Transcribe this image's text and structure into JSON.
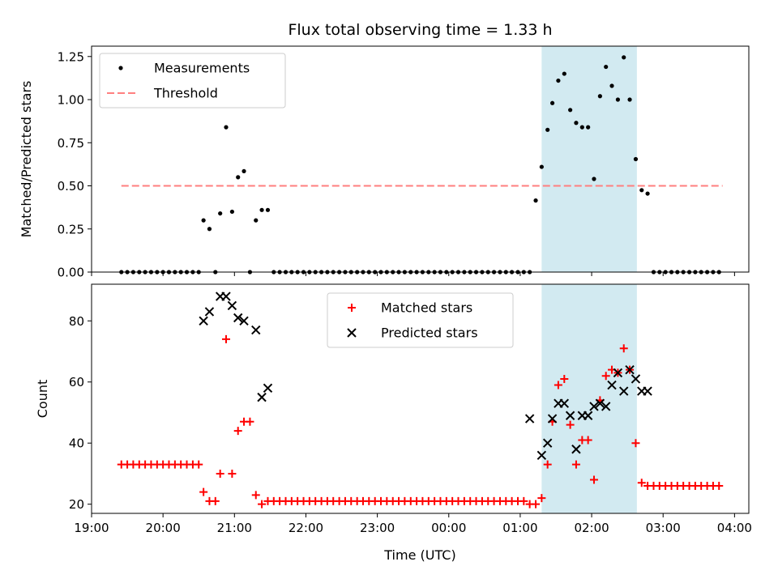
{
  "chart_data": [
    {
      "type": "scatter",
      "title": "Flux total observing time = 1.33 h",
      "ylabel": "Matched/Predicted stars",
      "xlabel": "",
      "xlim": [
        19.0,
        28.2
      ],
      "ylim": [
        0,
        1.31
      ],
      "yticks": [
        0,
        0.25,
        0.5,
        0.75,
        1.0,
        1.25
      ],
      "ytick_labels": [
        "0.00",
        "0.25",
        "0.50",
        "0.75",
        "1.00",
        "1.25"
      ],
      "grid": false,
      "legend": "top-left",
      "highlight_span": {
        "x": [
          25.3,
          26.633
        ],
        "color": "#add8e6"
      },
      "series": [
        {
          "name": "Measurements",
          "marker": "dot",
          "color": "#000000",
          "x": [
            19.417,
            19.5,
            19.583,
            19.667,
            19.75,
            19.833,
            19.917,
            20.0,
            20.083,
            20.167,
            20.25,
            20.333,
            20.417,
            20.5,
            20.567,
            20.65,
            20.733,
            20.8,
            20.883,
            20.967,
            21.05,
            21.133,
            21.217,
            21.3,
            21.383,
            21.467,
            21.55,
            21.633,
            21.717,
            21.8,
            21.883,
            21.967,
            22.05,
            22.133,
            22.217,
            22.3,
            22.383,
            22.467,
            22.55,
            22.633,
            22.717,
            22.8,
            22.883,
            22.967,
            23.05,
            23.133,
            23.217,
            23.3,
            23.383,
            23.467,
            23.55,
            23.633,
            23.717,
            23.8,
            23.883,
            23.967,
            24.05,
            24.133,
            24.217,
            24.3,
            24.383,
            24.467,
            24.55,
            24.633,
            24.717,
            24.8,
            24.883,
            24.967,
            25.05,
            25.133,
            25.217,
            25.3,
            25.383,
            25.45,
            25.533,
            25.617,
            25.7,
            25.783,
            25.867,
            25.95,
            26.033,
            26.117,
            26.2,
            26.283,
            26.367,
            26.45,
            26.533,
            26.617,
            26.7,
            26.783,
            26.867,
            26.95,
            27.033,
            27.117,
            27.2,
            27.283,
            27.367,
            27.45,
            27.533,
            27.617,
            27.7,
            27.783
          ],
          "y": [
            0,
            0,
            0,
            0,
            0,
            0,
            0,
            0,
            0,
            0,
            0,
            0,
            0,
            0,
            0.3,
            0.25,
            0,
            0.34,
            0.84,
            0.35,
            0.55,
            0.585,
            0,
            0.3,
            0.36,
            0.36,
            0,
            0,
            0,
            0,
            0,
            0,
            0,
            0,
            0,
            0,
            0,
            0,
            0,
            0,
            0,
            0,
            0,
            0,
            0,
            0,
            0,
            0,
            0,
            0,
            0,
            0,
            0,
            0,
            0,
            0,
            0,
            0,
            0,
            0,
            0,
            0,
            0,
            0,
            0,
            0,
            0,
            0,
            0,
            0,
            0.415,
            0.61,
            0.825,
            0.98,
            1.11,
            1.15,
            0.94,
            0.865,
            0.84,
            0.84,
            0.54,
            1.02,
            1.19,
            1.08,
            1.0,
            1.245,
            1.0,
            0.655,
            0.475,
            0.455,
            0,
            0,
            0,
            0,
            0,
            0,
            0,
            0,
            0,
            0,
            0,
            0
          ]
        },
        {
          "name": "Threshold",
          "marker": "dashed-line",
          "color": "#ff7f7f",
          "x": [
            19.417,
            27.833
          ],
          "y": [
            0.5,
            0.5
          ]
        }
      ]
    },
    {
      "type": "scatter",
      "title": "",
      "ylabel": "Count",
      "xlabel": "Time (UTC)",
      "xlim": [
        19.0,
        28.2
      ],
      "ylim": [
        17,
        92
      ],
      "yticks": [
        20,
        40,
        60,
        80
      ],
      "ytick_labels": [
        "20",
        "40",
        "60",
        "80"
      ],
      "xticks": [
        19,
        20,
        21,
        22,
        23,
        24,
        25,
        26,
        27,
        28
      ],
      "xtick_labels": [
        "19:00",
        "20:00",
        "21:00",
        "22:00",
        "23:00",
        "00:00",
        "01:00",
        "02:00",
        "03:00",
        "04:00"
      ],
      "grid": false,
      "legend": "top-center",
      "highlight_span": {
        "x": [
          25.3,
          26.633
        ],
        "color": "#add8e6"
      },
      "series": [
        {
          "name": "Matched stars",
          "marker": "plus",
          "color": "#ff0000",
          "x": [
            19.417,
            19.5,
            19.583,
            19.667,
            19.75,
            19.833,
            19.917,
            20.0,
            20.083,
            20.167,
            20.25,
            20.333,
            20.417,
            20.5,
            20.567,
            20.65,
            20.733,
            20.8,
            20.883,
            20.967,
            21.05,
            21.133,
            21.217,
            21.3,
            21.383,
            21.467,
            21.55,
            21.633,
            21.717,
            21.8,
            21.883,
            21.967,
            22.05,
            22.133,
            22.217,
            22.3,
            22.383,
            22.467,
            22.55,
            22.633,
            22.717,
            22.8,
            22.883,
            22.967,
            23.05,
            23.133,
            23.217,
            23.3,
            23.383,
            23.467,
            23.55,
            23.633,
            23.717,
            23.8,
            23.883,
            23.967,
            24.05,
            24.133,
            24.217,
            24.3,
            24.383,
            24.467,
            24.55,
            24.633,
            24.717,
            24.8,
            24.883,
            24.967,
            25.05,
            25.133,
            25.217,
            25.3,
            25.383,
            25.45,
            25.533,
            25.617,
            25.7,
            25.783,
            25.867,
            25.95,
            26.033,
            26.117,
            26.2,
            26.283,
            26.367,
            26.45,
            26.533,
            26.617,
            26.7,
            26.783,
            26.867,
            26.95,
            27.033,
            27.117,
            27.2,
            27.283,
            27.367,
            27.45,
            27.533,
            27.617,
            27.7,
            27.783
          ],
          "y": [
            33,
            33,
            33,
            33,
            33,
            33,
            33,
            33,
            33,
            33,
            33,
            33,
            33,
            33,
            24,
            21,
            21,
            30,
            74,
            30,
            44,
            47,
            47,
            23,
            20,
            21,
            21,
            21,
            21,
            21,
            21,
            21,
            21,
            21,
            21,
            21,
            21,
            21,
            21,
            21,
            21,
            21,
            21,
            21,
            21,
            21,
            21,
            21,
            21,
            21,
            21,
            21,
            21,
            21,
            21,
            21,
            21,
            21,
            21,
            21,
            21,
            21,
            21,
            21,
            21,
            21,
            21,
            21,
            21,
            20,
            20,
            22,
            33,
            47,
            59,
            61,
            46,
            33,
            41,
            41,
            28,
            54,
            62,
            64,
            63,
            71,
            64,
            40,
            27,
            26,
            26,
            26,
            26,
            26,
            26,
            26,
            26,
            26,
            26,
            26,
            26,
            26
          ]
        },
        {
          "name": "Predicted stars",
          "marker": "x",
          "color": "#000000",
          "x": [
            20.567,
            20.65,
            20.8,
            20.883,
            20.967,
            21.05,
            21.133,
            21.3,
            21.383,
            21.467,
            25.133,
            25.3,
            25.383,
            25.45,
            25.533,
            25.617,
            25.7,
            25.783,
            25.867,
            25.95,
            26.033,
            26.117,
            26.2,
            26.283,
            26.367,
            26.45,
            26.533,
            26.617,
            26.7,
            26.783
          ],
          "y": [
            80,
            83,
            88,
            88,
            85,
            81,
            80,
            77,
            55,
            58,
            48,
            36,
            40,
            48,
            53,
            53,
            49,
            38,
            49,
            49,
            52,
            53,
            52,
            59,
            63,
            57,
            64,
            61,
            57,
            57
          ]
        }
      ]
    }
  ]
}
